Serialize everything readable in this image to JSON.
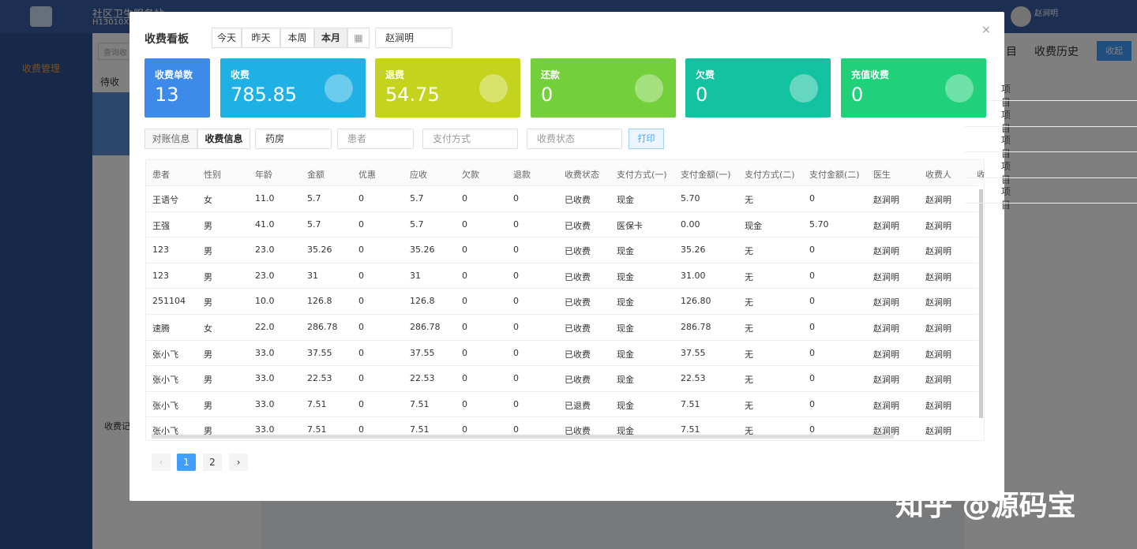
{
  "background": {
    "site_title": "社区卫生服务站",
    "site_code": "H13010XX",
    "menu_item": "收费管理",
    "search_placeholder": "查询收",
    "tab_pending": "待收",
    "charge_record": "收费记",
    "user_name": "赵涧明",
    "right_tab_items": "目",
    "right_tab_history": "收费历史",
    "collapse_button": "收起",
    "right_list": [
      "项目",
      "项目",
      "项目",
      "项目",
      "项目"
    ]
  },
  "modal": {
    "title": "收费看板",
    "date_buttons": [
      "今天",
      "昨天",
      "本周",
      "本月"
    ],
    "operator": "赵涧明",
    "cards": [
      {
        "label": "收费单数",
        "value": "13"
      },
      {
        "label": "收费",
        "value": "785.85"
      },
      {
        "label": "退费",
        "value": "54.75"
      },
      {
        "label": "还款",
        "value": "0"
      },
      {
        "label": "欠费",
        "value": "0"
      },
      {
        "label": "充值收费",
        "value": "0"
      }
    ],
    "filter_tabs": [
      "对账信息",
      "收费信息"
    ],
    "pharmacy": "药房",
    "patient_placeholder": "患者",
    "payment_placeholder": "支付方式",
    "status_placeholder": "收费状态",
    "print_button": "打印",
    "table": {
      "columns": [
        "患者",
        "性别",
        "年龄",
        "金额",
        "优惠",
        "应收",
        "欠款",
        "退款",
        "收费状态",
        "支付方式(一)",
        "支付金额(一)",
        "支付方式(二)",
        "支付金额(二)",
        "医生",
        "收费人",
        "收"
      ],
      "rows": [
        [
          "王语兮",
          "女",
          "11.0",
          "5.7",
          "0",
          "5.7",
          "0",
          "0",
          "已收费",
          "现金",
          "5.70",
          "无",
          "0",
          "赵涧明",
          "赵涧明"
        ],
        [
          "王强",
          "男",
          "41.0",
          "5.7",
          "0",
          "5.7",
          "0",
          "0",
          "已收费",
          "医保卡",
          "0.00",
          "现金",
          "5.70",
          "赵涧明",
          "赵涧明"
        ],
        [
          "123",
          "男",
          "23.0",
          "35.26",
          "0",
          "35.26",
          "0",
          "0",
          "已收费",
          "现金",
          "35.26",
          "无",
          "0",
          "赵涧明",
          "赵涧明"
        ],
        [
          "123",
          "男",
          "23.0",
          "31",
          "0",
          "31",
          "0",
          "0",
          "已收费",
          "现金",
          "31.00",
          "无",
          "0",
          "赵涧明",
          "赵涧明"
        ],
        [
          "251104",
          "男",
          "10.0",
          "126.8",
          "0",
          "126.8",
          "0",
          "0",
          "已收费",
          "现金",
          "126.80",
          "无",
          "0",
          "赵涧明",
          "赵涧明"
        ],
        [
          "速腾",
          "女",
          "22.0",
          "286.78",
          "0",
          "286.78",
          "0",
          "0",
          "已收费",
          "现金",
          "286.78",
          "无",
          "0",
          "赵涧明",
          "赵涧明"
        ],
        [
          "张小飞",
          "男",
          "33.0",
          "37.55",
          "0",
          "37.55",
          "0",
          "0",
          "已收费",
          "现金",
          "37.55",
          "无",
          "0",
          "赵涧明",
          "赵涧明"
        ],
        [
          "张小飞",
          "男",
          "33.0",
          "22.53",
          "0",
          "22.53",
          "0",
          "0",
          "已收费",
          "现金",
          "22.53",
          "无",
          "0",
          "赵涧明",
          "赵涧明"
        ],
        [
          "张小飞",
          "男",
          "33.0",
          "7.51",
          "0",
          "7.51",
          "0",
          "0",
          "已退费",
          "现金",
          "7.51",
          "无",
          "0",
          "赵涧明",
          "赵涧明"
        ],
        [
          "张小飞",
          "男",
          "33.0",
          "7.51",
          "0",
          "7.51",
          "0",
          "0",
          "已收费",
          "现金",
          "7.51",
          "无",
          "0",
          "赵涧明",
          "赵涧明"
        ]
      ]
    },
    "pages": [
      "1",
      "2"
    ]
  },
  "watermark": "知乎 @源码宝"
}
